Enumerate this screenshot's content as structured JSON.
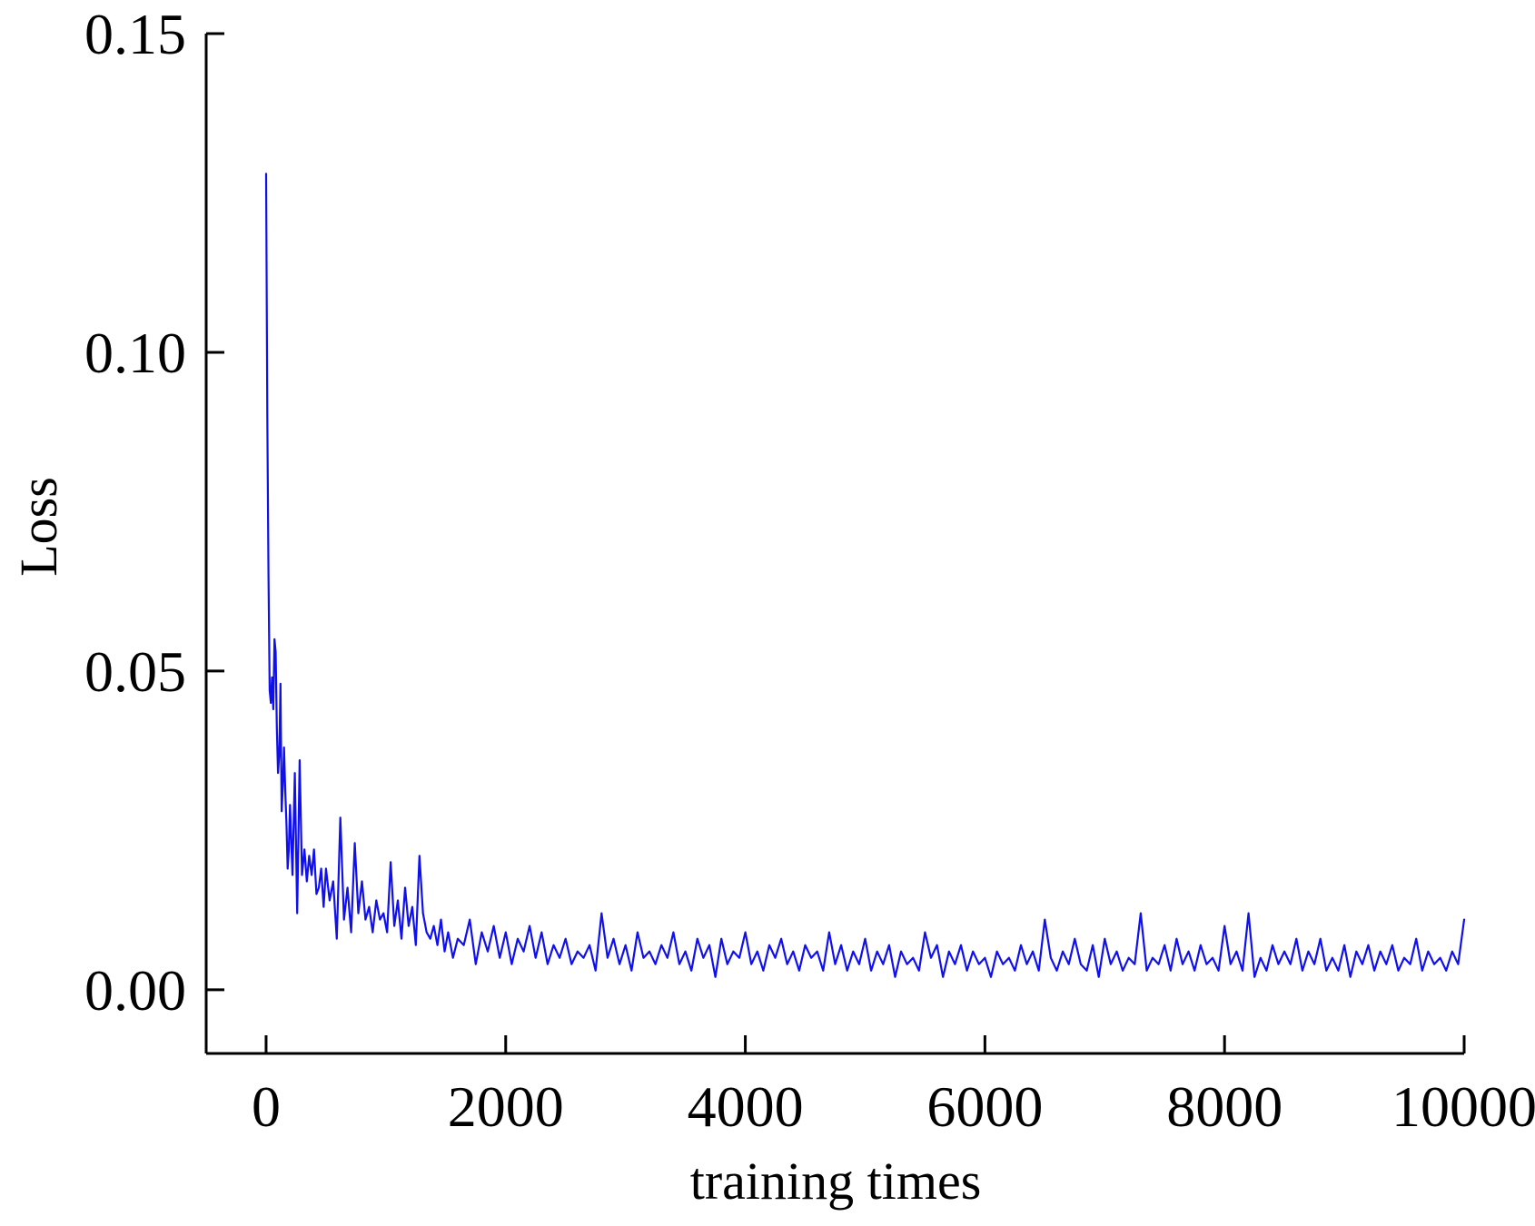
{
  "chart_data": {
    "type": "line",
    "title": "",
    "xlabel": "training times",
    "ylabel": "Loss",
    "xlim": [
      -500,
      10000
    ],
    "ylim": [
      -0.01,
      0.15
    ],
    "x_ticks": [
      0,
      2000,
      4000,
      6000,
      8000,
      10000
    ],
    "x_tick_labels": [
      "0",
      "2000",
      "4000",
      "6000",
      "8000",
      "10000"
    ],
    "y_ticks": [
      0.0,
      0.05,
      0.1,
      0.15
    ],
    "y_tick_labels": [
      "0.00",
      "0.05",
      "0.10",
      "0.15"
    ],
    "grid": false,
    "legend": "none",
    "series": [
      {
        "color": "#1010ee",
        "x": [
          0,
          10,
          20,
          30,
          40,
          50,
          60,
          70,
          80,
          90,
          100,
          110,
          120,
          130,
          140,
          150,
          160,
          170,
          180,
          190,
          200,
          220,
          240,
          260,
          280,
          300,
          320,
          340,
          360,
          380,
          400,
          420,
          440,
          460,
          480,
          500,
          530,
          560,
          590,
          620,
          650,
          680,
          710,
          740,
          770,
          800,
          830,
          860,
          890,
          920,
          950,
          980,
          1010,
          1040,
          1070,
          1100,
          1130,
          1160,
          1190,
          1220,
          1250,
          1280,
          1310,
          1340,
          1370,
          1400,
          1430,
          1460,
          1490,
          1520,
          1560,
          1600,
          1650,
          1700,
          1750,
          1800,
          1850,
          1900,
          1950,
          2000,
          2050,
          2100,
          2150,
          2200,
          2250,
          2300,
          2350,
          2400,
          2450,
          2500,
          2550,
          2600,
          2650,
          2700,
          2750,
          2800,
          2850,
          2900,
          2950,
          3000,
          3050,
          3100,
          3150,
          3200,
          3250,
          3300,
          3350,
          3400,
          3450,
          3500,
          3550,
          3600,
          3650,
          3700,
          3750,
          3800,
          3850,
          3900,
          3950,
          4000,
          4050,
          4100,
          4150,
          4200,
          4250,
          4300,
          4350,
          4400,
          4450,
          4500,
          4550,
          4600,
          4650,
          4700,
          4750,
          4800,
          4850,
          4900,
          4950,
          5000,
          5050,
          5100,
          5150,
          5200,
          5250,
          5300,
          5350,
          5400,
          5450,
          5500,
          5550,
          5600,
          5650,
          5700,
          5750,
          5800,
          5850,
          5900,
          5950,
          6000,
          6050,
          6100,
          6150,
          6200,
          6250,
          6300,
          6350,
          6400,
          6450,
          6500,
          6550,
          6600,
          6650,
          6700,
          6750,
          6800,
          6850,
          6900,
          6950,
          7000,
          7050,
          7100,
          7150,
          7200,
          7250,
          7300,
          7350,
          7400,
          7450,
          7500,
          7550,
          7600,
          7650,
          7700,
          7750,
          7800,
          7850,
          7900,
          7950,
          8000,
          8050,
          8100,
          8150,
          8200,
          8250,
          8300,
          8350,
          8400,
          8450,
          8500,
          8550,
          8600,
          8650,
          8700,
          8750,
          8800,
          8850,
          8900,
          8950,
          9000,
          9050,
          9100,
          9150,
          9200,
          9250,
          9300,
          9350,
          9400,
          9450,
          9500,
          9550,
          9600,
          9650,
          9700,
          9750,
          9800,
          9850,
          9900,
          9950,
          10000
        ],
        "y": [
          0.128,
          0.09,
          0.065,
          0.047,
          0.045,
          0.049,
          0.044,
          0.055,
          0.053,
          0.041,
          0.034,
          0.037,
          0.048,
          0.028,
          0.032,
          0.038,
          0.031,
          0.026,
          0.019,
          0.022,
          0.029,
          0.018,
          0.034,
          0.012,
          0.036,
          0.018,
          0.022,
          0.017,
          0.021,
          0.018,
          0.022,
          0.015,
          0.016,
          0.019,
          0.013,
          0.019,
          0.014,
          0.017,
          0.008,
          0.027,
          0.011,
          0.016,
          0.009,
          0.023,
          0.012,
          0.017,
          0.011,
          0.013,
          0.009,
          0.014,
          0.011,
          0.012,
          0.009,
          0.02,
          0.01,
          0.014,
          0.008,
          0.016,
          0.01,
          0.013,
          0.007,
          0.021,
          0.012,
          0.009,
          0.008,
          0.01,
          0.007,
          0.011,
          0.006,
          0.009,
          0.005,
          0.008,
          0.007,
          0.011,
          0.004,
          0.009,
          0.006,
          0.01,
          0.005,
          0.009,
          0.004,
          0.008,
          0.006,
          0.01,
          0.005,
          0.009,
          0.004,
          0.007,
          0.005,
          0.008,
          0.004,
          0.006,
          0.005,
          0.007,
          0.003,
          0.012,
          0.005,
          0.008,
          0.004,
          0.007,
          0.003,
          0.009,
          0.005,
          0.006,
          0.004,
          0.007,
          0.005,
          0.009,
          0.004,
          0.006,
          0.003,
          0.008,
          0.005,
          0.007,
          0.002,
          0.008,
          0.004,
          0.006,
          0.005,
          0.009,
          0.004,
          0.006,
          0.003,
          0.007,
          0.005,
          0.008,
          0.004,
          0.006,
          0.003,
          0.007,
          0.005,
          0.006,
          0.003,
          0.009,
          0.004,
          0.007,
          0.003,
          0.006,
          0.004,
          0.008,
          0.003,
          0.006,
          0.004,
          0.007,
          0.002,
          0.006,
          0.004,
          0.005,
          0.003,
          0.009,
          0.005,
          0.007,
          0.002,
          0.006,
          0.004,
          0.007,
          0.003,
          0.006,
          0.004,
          0.005,
          0.002,
          0.006,
          0.004,
          0.005,
          0.003,
          0.007,
          0.004,
          0.006,
          0.003,
          0.011,
          0.005,
          0.003,
          0.006,
          0.004,
          0.008,
          0.004,
          0.003,
          0.007,
          0.002,
          0.008,
          0.004,
          0.006,
          0.003,
          0.005,
          0.004,
          0.012,
          0.003,
          0.005,
          0.004,
          0.007,
          0.003,
          0.008,
          0.004,
          0.006,
          0.003,
          0.007,
          0.004,
          0.005,
          0.003,
          0.01,
          0.004,
          0.006,
          0.003,
          0.012,
          0.002,
          0.005,
          0.003,
          0.007,
          0.004,
          0.006,
          0.004,
          0.008,
          0.003,
          0.006,
          0.004,
          0.008,
          0.003,
          0.005,
          0.003,
          0.007,
          0.002,
          0.006,
          0.004,
          0.007,
          0.003,
          0.006,
          0.004,
          0.007,
          0.003,
          0.005,
          0.004,
          0.008,
          0.003,
          0.006,
          0.004,
          0.005,
          0.003,
          0.006,
          0.004,
          0.011
        ]
      }
    ]
  }
}
